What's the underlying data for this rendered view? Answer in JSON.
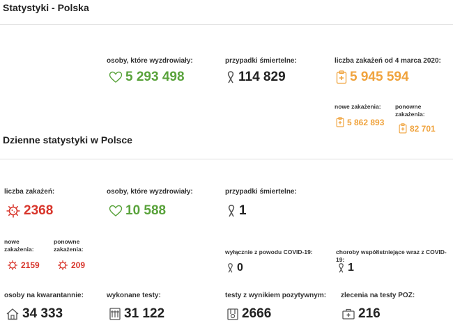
{
  "page": {
    "title": "Statystyki - Polska"
  },
  "summary": {
    "recovered": {
      "label": "osoby, które wyzdrowiały:",
      "value": "5 293 498"
    },
    "deaths": {
      "label": "przypadki śmiertelne:",
      "value": "114 829"
    },
    "cases": {
      "label": "liczba zakażeń od 4 marca 2020:",
      "value": "5 945 594",
      "new": {
        "label": "nowe zakażenia:",
        "value": "5 862 893"
      },
      "reinfections": {
        "label": "ponowne zakażenia:",
        "value": "82 701"
      }
    }
  },
  "daily": {
    "title": "Dzienne statystyki w Polsce",
    "cases": {
      "label": "liczba zakażeń:",
      "value": "2368",
      "new": {
        "label": "nowe zakażenia:",
        "value": "2159"
      },
      "reinfections": {
        "label": "ponowne zakażenia:",
        "value": "209"
      }
    },
    "recovered": {
      "label": "osoby, które wyzdrowiały:",
      "value": "10 588"
    },
    "deaths": {
      "label": "przypadki śmiertelne:",
      "value": "1",
      "covid_only": {
        "label": "wyłącznie z powodu COVID-19:",
        "value": "0"
      },
      "comorbid": {
        "label": "choroby współistniejące wraz z COVID-19:",
        "value": "1"
      }
    },
    "quarantine": {
      "label": "osoby na kwarantannie:",
      "value": "34 333"
    },
    "tests": {
      "label": "wykonane testy:",
      "value": "31 122"
    },
    "positive_tests": {
      "label": "testy z wynikiem pozytywnym:",
      "value": "2666"
    },
    "poz_orders": {
      "label": "zlecenia na testy POZ:",
      "value": "216"
    }
  },
  "colors": {
    "green": "#5aa33c",
    "orange": "#f0a33d",
    "red": "#d8362c",
    "dark": "#222222"
  },
  "icons": [
    "heart-icon",
    "ribbon-icon",
    "clipboard-cross-icon",
    "virus-icon",
    "house-icon",
    "test-tubes-icon",
    "lab-icon",
    "clinic-icon"
  ]
}
